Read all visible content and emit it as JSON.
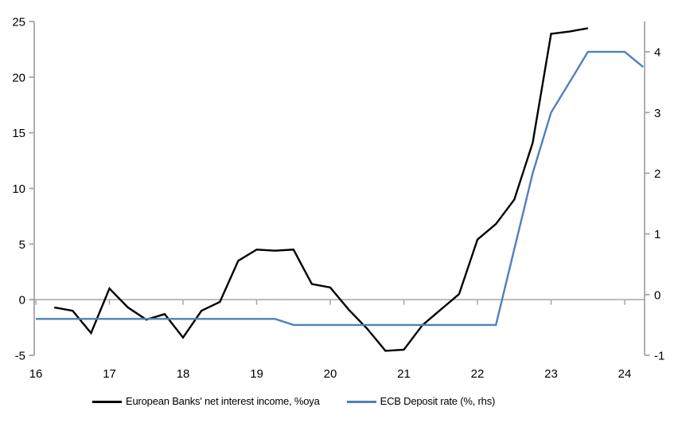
{
  "chart_data": {
    "type": "line",
    "title": "",
    "series": [
      {
        "name": "European Banks' net interest income, %oya",
        "axis": "left",
        "color": "#000000",
        "width": 2.4,
        "x": [
          16.25,
          16.5,
          16.75,
          17.0,
          17.25,
          17.5,
          17.75,
          18.0,
          18.25,
          18.5,
          18.75,
          19.0,
          19.25,
          19.5,
          19.75,
          20.0,
          20.25,
          20.5,
          20.75,
          21.0,
          21.25,
          21.5,
          21.75,
          22.0,
          22.25,
          22.5,
          22.75,
          23.0,
          23.25,
          23.5
        ],
        "values": [
          -0.7,
          -1.0,
          -3.0,
          1.0,
          -0.7,
          -1.8,
          -1.3,
          -3.4,
          -1.0,
          -0.2,
          3.5,
          4.5,
          4.4,
          4.5,
          1.4,
          1.1,
          -0.9,
          -2.6,
          -4.6,
          -4.5,
          -2.3,
          -0.9,
          0.5,
          5.4,
          6.8,
          9.0,
          14.1,
          23.9,
          24.1,
          24.4
        ]
      },
      {
        "name": "ECB Deposit rate (%, rhs)",
        "axis": "right",
        "color": "#4f81bd",
        "width": 2.4,
        "x": [
          16.0,
          16.25,
          16.5,
          16.75,
          17.0,
          17.25,
          17.5,
          17.75,
          18.0,
          18.25,
          18.5,
          18.75,
          19.0,
          19.25,
          19.5,
          19.75,
          20.0,
          20.25,
          20.5,
          20.75,
          21.0,
          21.25,
          21.5,
          21.75,
          22.0,
          22.25,
          22.5,
          22.75,
          23.0,
          23.25,
          23.5,
          23.75,
          24.0,
          24.25
        ],
        "values": [
          -0.4,
          -0.4,
          -0.4,
          -0.4,
          -0.4,
          -0.4,
          -0.4,
          -0.4,
          -0.4,
          -0.4,
          -0.4,
          -0.4,
          -0.4,
          -0.4,
          -0.5,
          -0.5,
          -0.5,
          -0.5,
          -0.5,
          -0.5,
          -0.5,
          -0.5,
          -0.5,
          -0.5,
          -0.5,
          -0.5,
          0.75,
          2.0,
          3.0,
          3.5,
          4.0,
          4.0,
          4.0,
          3.75
        ]
      }
    ],
    "x_axis": {
      "range": [
        15.978,
        24.27
      ],
      "ticks": [
        16,
        17,
        18,
        19,
        20,
        21,
        22,
        23,
        24
      ],
      "tick_labels": [
        "16",
        "17",
        "18",
        "19",
        "20",
        "21",
        "22",
        "23",
        "24"
      ]
    },
    "left_axis": {
      "range": [
        -5,
        25
      ],
      "ticks": [
        -5,
        0,
        5,
        10,
        15,
        20,
        25
      ],
      "tick_labels": [
        "-5",
        "0",
        "5",
        "10",
        "15",
        "20",
        "25"
      ]
    },
    "right_axis": {
      "range": [
        -1,
        4.5
      ],
      "ticks": [
        -1,
        0,
        1,
        2,
        3,
        4
      ],
      "tick_labels": [
        "-1",
        "0",
        "1",
        "2",
        "3",
        "4"
      ]
    },
    "zero_line": true,
    "grid": false,
    "legend_position": "bottom"
  },
  "legend": {
    "items": [
      {
        "label": "European Banks' net interest income, %oya",
        "color": "#000000"
      },
      {
        "label": "ECB Deposit rate (%, rhs)",
        "color": "#4f81bd"
      }
    ]
  },
  "colors": {
    "background": "#ffffff",
    "axis_line": "#a6a6a6",
    "zero_line": "#a6a6a6",
    "tick_text": "#000000"
  }
}
